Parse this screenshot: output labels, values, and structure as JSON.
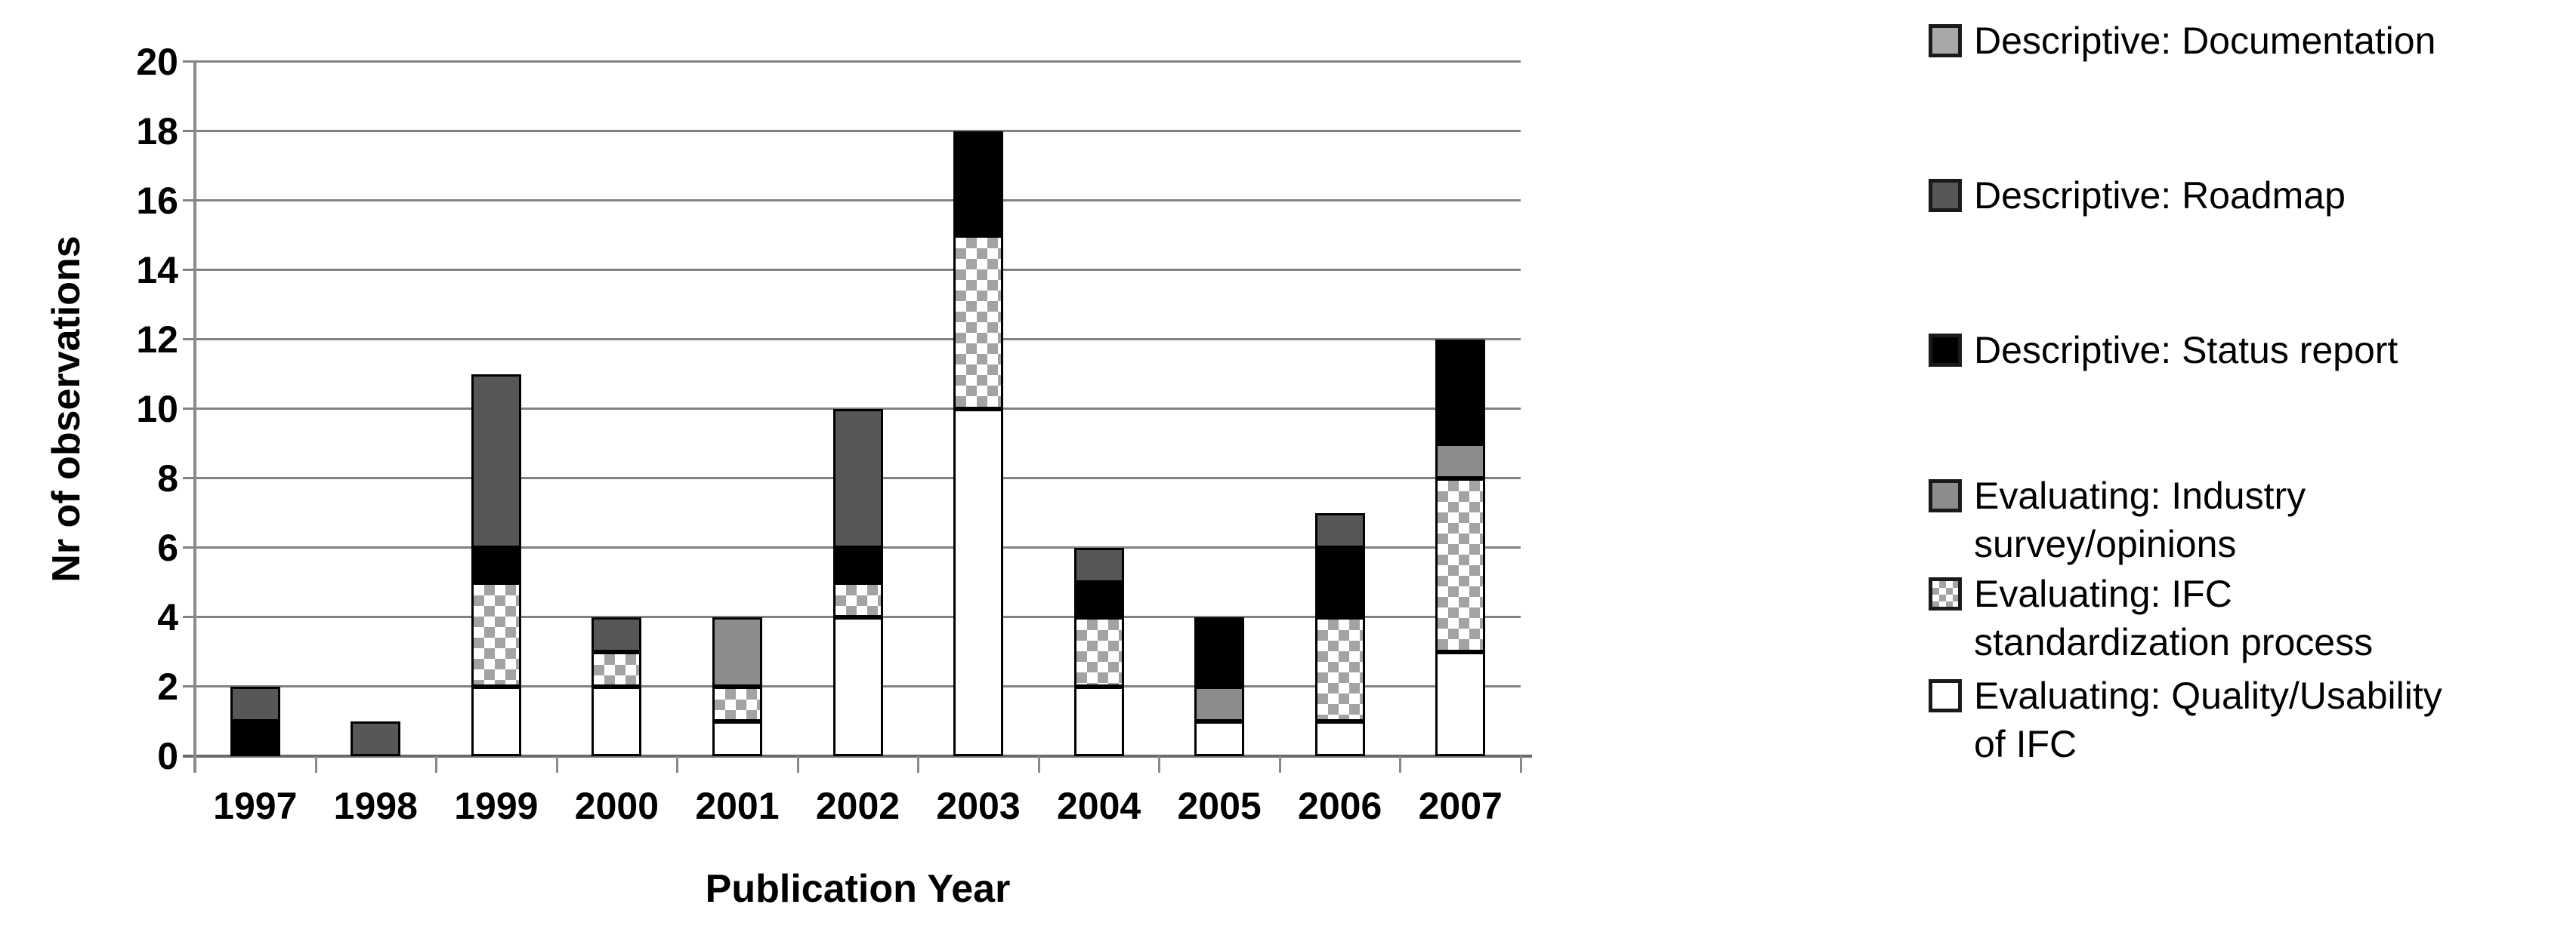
{
  "chart_data": {
    "type": "bar",
    "stacked": true,
    "xlabel": "Publication Year",
    "ylabel": "Nr of observations",
    "ylim": [
      0,
      20
    ],
    "ytick_step": 2,
    "grid": "horizontal",
    "legend_position": "right",
    "categories": [
      "1997",
      "1998",
      "1999",
      "2000",
      "2001",
      "2002",
      "2003",
      "2004",
      "2005",
      "2006",
      "2007"
    ],
    "series": [
      {
        "name": "Evaluating: Quality/Usability of IFC",
        "fill": "#ffffff",
        "values": [
          0,
          0,
          2,
          2,
          1,
          4,
          10,
          2,
          1,
          1,
          3
        ]
      },
      {
        "name": "Evaluating: IFC standardization process",
        "fill": "checker",
        "values": [
          0,
          0,
          3,
          1,
          1,
          1,
          5,
          2,
          0,
          3,
          5
        ]
      },
      {
        "name": "Evaluating: Industry survey/opinions",
        "fill": "#8c8c8c",
        "values": [
          0,
          0,
          0,
          0,
          2,
          0,
          0,
          0,
          1,
          0,
          1
        ]
      },
      {
        "name": "Descriptive: Status report",
        "fill": "#000000",
        "values": [
          1,
          0,
          1,
          0,
          0,
          1,
          3,
          1,
          2,
          2,
          3
        ]
      },
      {
        "name": "Descriptive: Roadmap",
        "fill": "#575757",
        "values": [
          1,
          1,
          5,
          1,
          0,
          4,
          0,
          1,
          0,
          1,
          0
        ]
      },
      {
        "name": "Descriptive: Documentation",
        "fill": "#a8a8a8",
        "values": [
          0,
          0,
          0,
          0,
          0,
          0,
          0,
          0,
          0,
          0,
          0
        ]
      }
    ],
    "totals_per_year": [
      2,
      1,
      11,
      4,
      4,
      10,
      18,
      6,
      4,
      7,
      12
    ]
  },
  "legend": {
    "items": [
      {
        "label": "Descriptive: Documentation",
        "swatch": "#a8a8a8"
      },
      {
        "label": "Descriptive: Roadmap",
        "swatch": "#575757"
      },
      {
        "label": "Descriptive: Status report",
        "swatch": "#000000"
      },
      {
        "label": "Evaluating: Industry\nsurvey/opinions",
        "swatch": "#8c8c8c"
      },
      {
        "label": "Evaluating: IFC\nstandardization process",
        "swatch": "checker"
      },
      {
        "label": "Evaluating: Quality/Usability\nof IFC",
        "swatch": "#ffffff"
      }
    ]
  },
  "colors": {
    "gridline": "#828282",
    "axis": "#6a6a6a",
    "bar_border": "#000000",
    "checker_gray": "#a3a3a3",
    "text": "#000000",
    "background": "#ffffff"
  }
}
